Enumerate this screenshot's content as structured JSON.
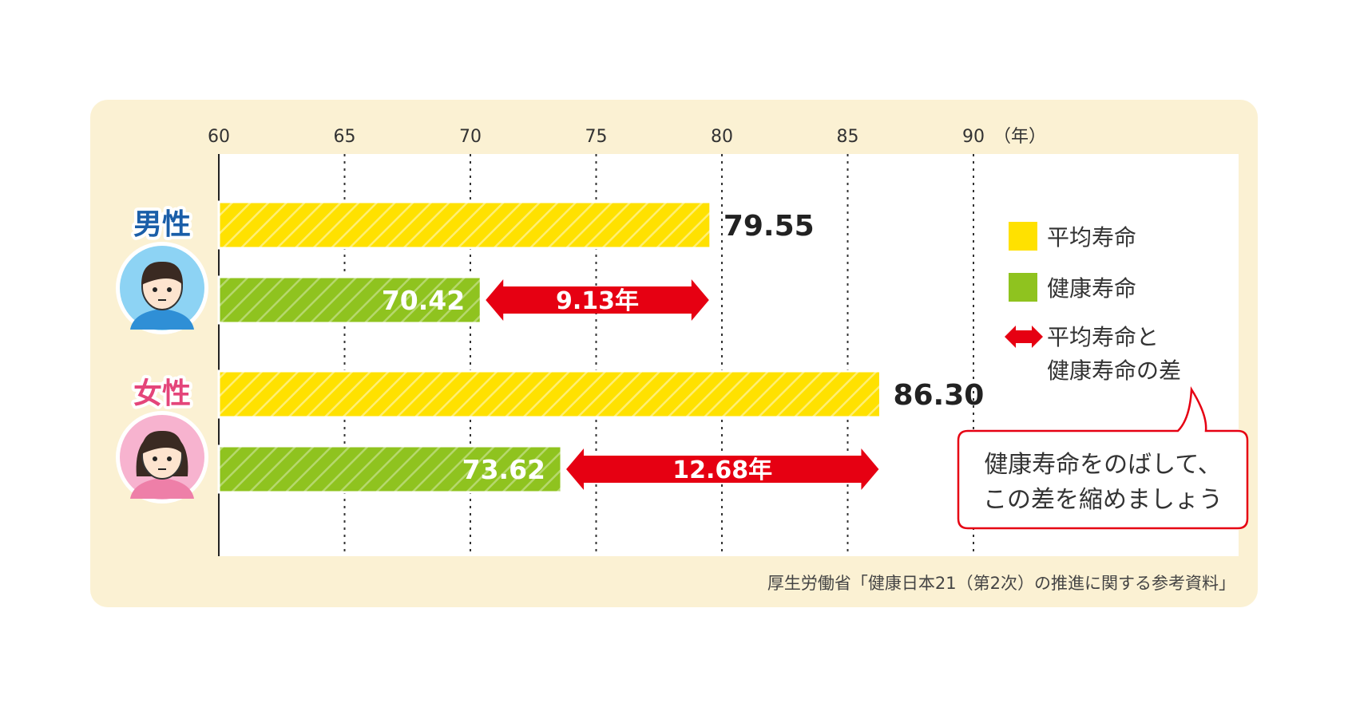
{
  "chart_data": {
    "type": "bar",
    "orientation": "horizontal",
    "unit": "（年）",
    "xlim": [
      60,
      90
    ],
    "xticks": [
      60,
      65,
      70,
      75,
      80,
      85,
      90
    ],
    "grid": true,
    "categories": [
      "男性",
      "女性"
    ],
    "series": [
      {
        "name": "平均寿命",
        "values": [
          79.55,
          86.3
        ],
        "labels": [
          "79.55",
          "86.30"
        ],
        "color": "#ffe100"
      },
      {
        "name": "健康寿命",
        "values": [
          70.42,
          73.62
        ],
        "labels": [
          "70.42",
          "73.62"
        ],
        "color": "#8fc31f"
      }
    ],
    "differences": {
      "name": "平均寿命と健康寿命の差",
      "values": [
        9.13,
        12.68
      ],
      "labels": [
        "9.13年",
        "12.68年"
      ],
      "color": "#e60012"
    },
    "legend": {
      "placement": "right",
      "items": [
        {
          "label": "平均寿命",
          "color": "#ffe100"
        },
        {
          "label": "健康寿命",
          "color": "#8fc31f"
        },
        {
          "label_lines": [
            "平均寿命と",
            "健康寿命の差"
          ],
          "color": "#e60012"
        }
      ]
    },
    "group_label_colors": [
      "#1a5ea8",
      "#e4457a"
    ],
    "annotation": [
      "健康寿命をのばして、",
      "この差を縮めましょう"
    ],
    "source": "厚生労働省「健康日本21（第2次）の推進に関する参考資料」"
  }
}
